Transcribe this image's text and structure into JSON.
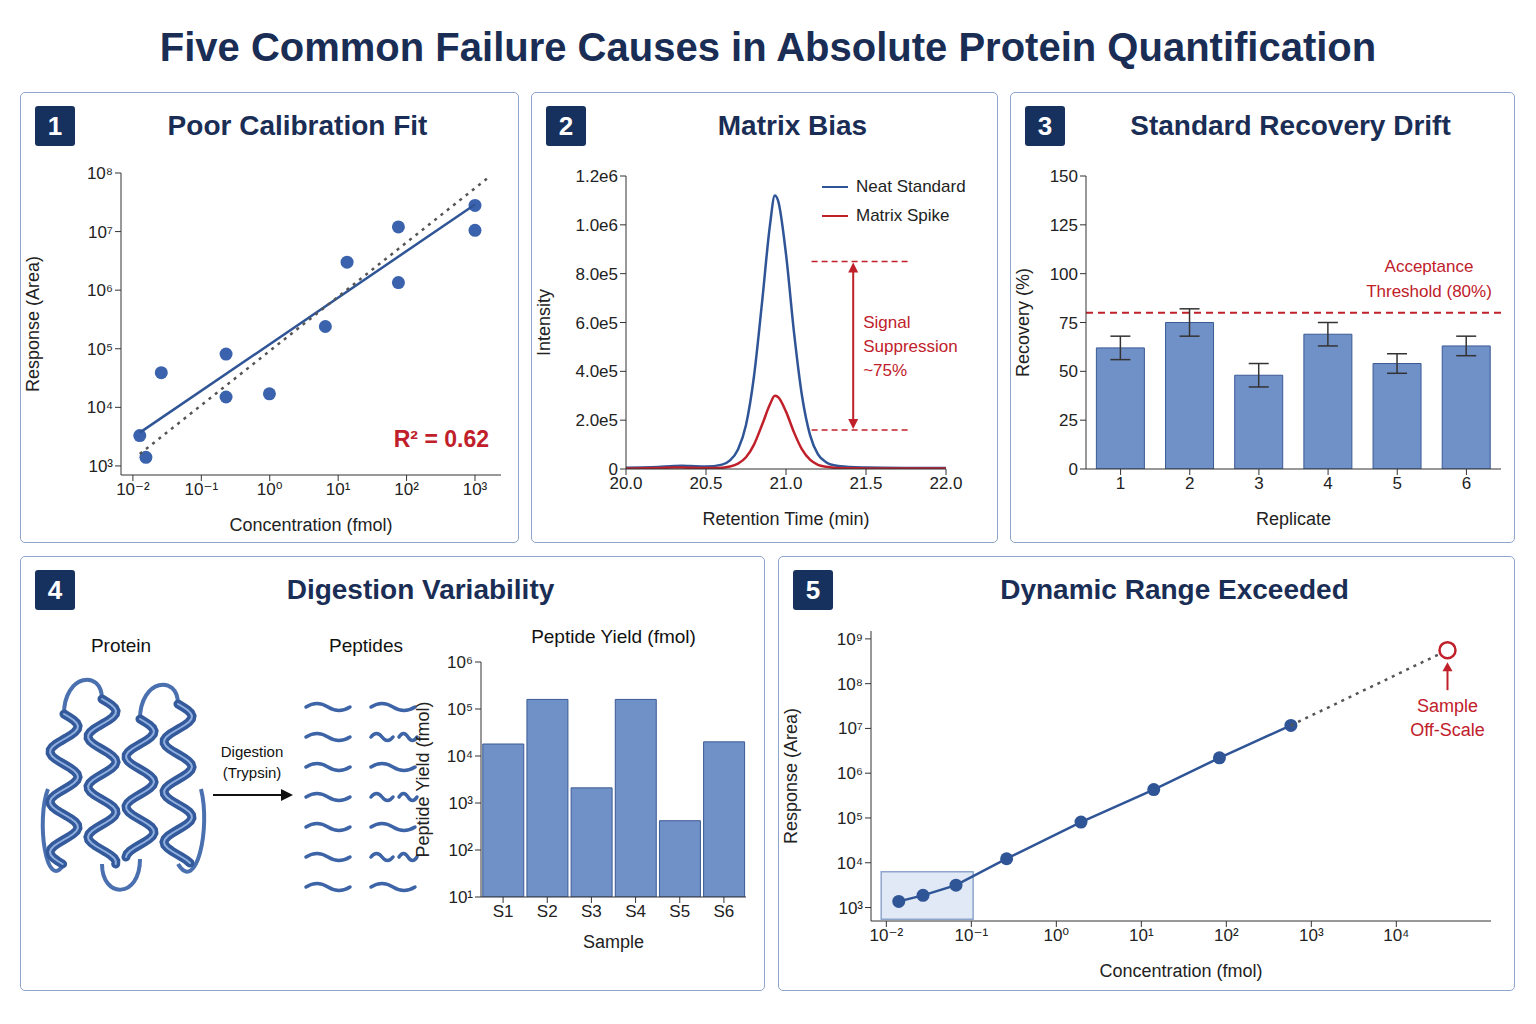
{
  "title": "Five Common Failure Causes in Absolute Protein Quantification",
  "chart_data": [
    {
      "panel": "1",
      "title": "Poor Calibration Fit",
      "type": "scatter",
      "log": true,
      "grid": false,
      "xlabel": "Concentration (fmol)",
      "ylabel": "Response (Area)",
      "xlim": [
        0.0067,
        2400
      ],
      "ylim": [
        700,
        100000000
      ],
      "xticks": [
        {
          "value": 0.01,
          "label": "10⁻²"
        },
        {
          "value": 0.1,
          "label": "10⁻¹"
        },
        {
          "value": 1,
          "label": "10⁰"
        },
        {
          "value": 10,
          "label": "10¹"
        },
        {
          "value": 100,
          "label": "10²"
        },
        {
          "value": 1000,
          "label": "10³"
        }
      ],
      "yticks": [
        {
          "value": 1000,
          "label": "10³"
        },
        {
          "value": 10000,
          "label": "10⁴"
        },
        {
          "value": 100000,
          "label": "10⁵"
        },
        {
          "value": 1000000,
          "label": "10⁶"
        },
        {
          "value": 10000000,
          "label": "10⁷"
        },
        {
          "value": 100000000,
          "label": "10⁸"
        }
      ],
      "series": [
        {
          "type": "scatter",
          "color": "#3b63ad",
          "marker": "circle",
          "x": [
            0.0126,
            0.0155,
            0.026,
            0.23,
            0.23,
            0.99,
            6.5,
            13.5,
            76,
            76,
            1000,
            1000
          ],
          "values": [
            3300,
            1400,
            39000,
            81000,
            15000,
            17000,
            240000,
            3000000,
            12000000,
            1350000,
            28000000,
            10500000
          ]
        },
        {
          "type": "line",
          "color": "#2f5597",
          "line_style": "solid",
          "x": [
            0.0126,
            1000
          ],
          "values": [
            3700,
            29000000
          ]
        },
        {
          "type": "line",
          "color": "#555555",
          "line_style": "dotted",
          "x": [
            0.0126,
            1700
          ],
          "values": [
            1600,
            90000000
          ]
        }
      ],
      "annotation": "R² = 0.62"
    },
    {
      "panel": "2",
      "title": "Matrix Bias",
      "type": "line",
      "grid": false,
      "legend": "upper right",
      "xlabel": "Retention Time (min)",
      "ylabel": "Intensity",
      "xlim": [
        20,
        22
      ],
      "ylim": [
        0,
        1200000
      ],
      "xticks": [
        {
          "value": 20,
          "label": "20.0"
        },
        20.5,
        {
          "value": 21,
          "label": "21.0"
        },
        21.5,
        {
          "value": 22,
          "label": "22.0"
        }
      ],
      "yticks": [
        0,
        {
          "value": 200000,
          "label": "2.0e5"
        },
        {
          "value": 400000,
          "label": "4.0e5"
        },
        {
          "value": 600000,
          "label": "6.0e5"
        },
        {
          "value": 800000,
          "label": "8.0e5"
        },
        {
          "value": 1000000,
          "label": "1.0e6"
        },
        {
          "value": 1200000,
          "label": "1.2e6"
        }
      ],
      "x": [
        20.0,
        20.1,
        20.2,
        20.3,
        20.35,
        20.4,
        20.5,
        20.6,
        20.65,
        20.7,
        20.75,
        20.8,
        20.85,
        20.9,
        20.93,
        20.95,
        21.0,
        21.05,
        21.1,
        21.15,
        21.2,
        21.25,
        21.3,
        21.4,
        21.5,
        21.6,
        21.8,
        22.0
      ],
      "series": [
        {
          "name": "Neat Standard",
          "color": "#2f5597",
          "values": [
            5000,
            6000,
            8000,
            12000,
            13000,
            12000,
            10000,
            18000,
            35000,
            80000,
            180000,
            380000,
            680000,
            1000000,
            1120000,
            1100000,
            880000,
            560000,
            300000,
            140000,
            60000,
            28000,
            15000,
            8000,
            6000,
            5000,
            4000,
            4000
          ]
        },
        {
          "name": "Matrix Spike",
          "color": "#c0202a",
          "values": [
            2000,
            3000,
            4000,
            6000,
            6000,
            5000,
            4000,
            5000,
            10000,
            22000,
            48000,
            100000,
            180000,
            265000,
            300000,
            295000,
            235000,
            150000,
            80000,
            38000,
            17000,
            9000,
            5000,
            3000,
            2500,
            2000,
            2000,
            2000
          ]
        }
      ],
      "suppression": {
        "label": "Signal Suppression ~75%",
        "from": 850000,
        "to": 160000
      }
    },
    {
      "panel": "3",
      "title": "Standard Recovery Drift",
      "type": "bar",
      "grid": false,
      "xlabel": "Replicate",
      "ylabel": "Recovery (%)",
      "categories": [
        "1",
        "2",
        "3",
        "4",
        "5",
        "6"
      ],
      "values": [
        62,
        75,
        48,
        69,
        54,
        63
      ],
      "errors": [
        6,
        7,
        6,
        6,
        5,
        5
      ],
      "color": "#7090c8",
      "ylim": [
        0,
        150
      ],
      "yticks": [
        0,
        25,
        50,
        75,
        100,
        125,
        150
      ],
      "threshold": {
        "value": 80,
        "label": "Acceptance Threshold (80%)"
      }
    },
    {
      "panel": "4",
      "title": "Digestion Variability",
      "type": "bar",
      "log": "y",
      "grid": false,
      "diagram": {
        "protein_label": "Protein",
        "peptides_label": "Peptides",
        "arrow_label": "Digestion (Trypsin)"
      },
      "subtitle": "Peptide Yield (fmol)",
      "xlabel": "Sample",
      "ylabel": "Peptide Yield (fmol)",
      "categories": [
        "S1",
        "S2",
        "S3",
        "S4",
        "S5",
        "S6"
      ],
      "values": [
        18000,
        160000,
        2100,
        160000,
        420,
        20000
      ],
      "color": "#7090c8",
      "ylim": [
        10,
        1000000
      ],
      "yticks": [
        {
          "value": 10,
          "label": "10¹"
        },
        {
          "value": 100,
          "label": "10²"
        },
        {
          "value": 1000,
          "label": "10³"
        },
        {
          "value": 10000,
          "label": "10⁴"
        },
        {
          "value": 100000,
          "label": "10⁵"
        },
        {
          "value": 1000000,
          "label": "10⁶"
        }
      ]
    },
    {
      "panel": "5",
      "title": "Dynamic Range Exceeded",
      "type": "scatter",
      "log": true,
      "grid": false,
      "xlabel": "Concentration (fmol)",
      "ylabel": "Response (Area)",
      "xlim": [
        0.0066,
        130000
      ],
      "ylim": [
        500,
        1500000000
      ],
      "xticks": [
        {
          "value": 0.01,
          "label": "10⁻²"
        },
        {
          "value": 0.1,
          "label": "10⁻¹"
        },
        {
          "value": 1,
          "label": "10⁰"
        },
        {
          "value": 10,
          "label": "10¹"
        },
        {
          "value": 100,
          "label": "10²"
        },
        {
          "value": 1000,
          "label": "10³"
        },
        {
          "value": 10000,
          "label": "10⁴"
        }
      ],
      "yticks": [
        {
          "value": 1000,
          "label": "10³"
        },
        {
          "value": 10000,
          "label": "10⁴"
        },
        {
          "value": 100000,
          "label": "10⁵"
        },
        {
          "value": 1000000,
          "label": "10⁶"
        },
        {
          "value": 10000000,
          "label": "10⁷"
        },
        {
          "value": 100000000,
          "label": "10⁸"
        },
        {
          "value": 1000000000,
          "label": "10⁹"
        }
      ],
      "series": [
        {
          "type": "line",
          "color": "#2f5597",
          "line_style": "solid",
          "marker": "circle",
          "x": [
            0.014,
            0.027,
            0.066,
            0.26,
            1.95,
            14,
            83,
            575
          ],
          "values": [
            1370,
            1870,
            3150,
            12300,
            81000,
            430000,
            2200000,
            11700000
          ]
        },
        {
          "type": "line",
          "color": "#555555",
          "line_style": "dotted",
          "x": [
            575,
            40000
          ],
          "values": [
            11700000,
            560000000
          ]
        },
        {
          "type": "scatter",
          "color": "#c0202a",
          "marker": "open_circle",
          "x": [
            40000
          ],
          "values": [
            560000000
          ]
        }
      ],
      "highlight": {
        "x": [
          0.0087,
          0.105
        ],
        "y": [
          550,
          6300
        ]
      },
      "annotation": "Sample Off-Scale"
    }
  ]
}
